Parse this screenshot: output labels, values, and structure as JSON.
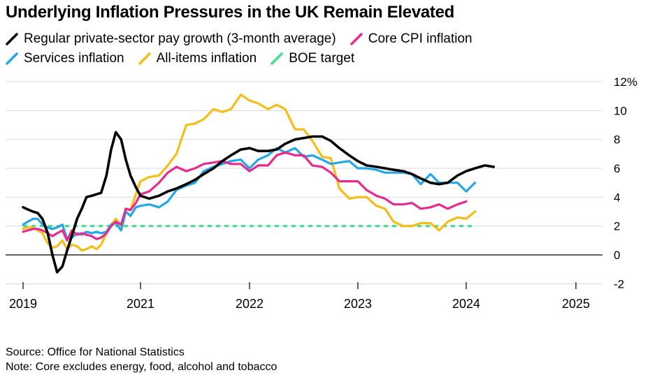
{
  "chart_data": {
    "type": "line",
    "title": "Underlying Inflation Pressures in the UK Remain Elevated",
    "xlabel": "",
    "ylabel": "",
    "ylim": [
      -2,
      12
    ],
    "xlim": [
      2019.0,
      2025.25
    ],
    "y_ticks": [
      "-2",
      "0",
      "2",
      "4",
      "6",
      "8",
      "10",
      "12%"
    ],
    "y_tick_values": [
      -2,
      0,
      2,
      4,
      6,
      8,
      10,
      12
    ],
    "x_ticks": [
      "2019",
      "2021",
      "2022",
      "2023",
      "2024",
      "2025"
    ],
    "grid": "horizontal",
    "legend_position": "top",
    "series": [
      {
        "name": "Regular private-sector pay growth (3-month average)",
        "color": "#000000",
        "points": [
          [
            2019.0,
            3.3
          ],
          [
            2019.08,
            3.15
          ],
          [
            2019.17,
            3.0
          ],
          [
            2019.25,
            2.9
          ],
          [
            2019.33,
            2.5
          ],
          [
            2019.42,
            1.5
          ],
          [
            2019.5,
            0.0
          ],
          [
            2019.58,
            -1.2
          ],
          [
            2019.67,
            -0.8
          ],
          [
            2019.75,
            0.3
          ],
          [
            2019.83,
            1.3
          ],
          [
            2019.92,
            2.5
          ],
          [
            2020.0,
            3.2
          ],
          [
            2020.08,
            4.0
          ],
          [
            2020.17,
            4.1
          ],
          [
            2020.25,
            4.2
          ],
          [
            2020.33,
            4.3
          ],
          [
            2020.42,
            5.5
          ],
          [
            2020.5,
            7.3
          ],
          [
            2020.58,
            8.5
          ],
          [
            2020.67,
            8.0
          ],
          [
            2020.75,
            6.6
          ],
          [
            2020.83,
            5.5
          ],
          [
            2020.92,
            4.7
          ],
          [
            2021.0,
            4.1
          ],
          [
            2021.08,
            3.9
          ],
          [
            2021.17,
            4.1
          ],
          [
            2021.25,
            4.4
          ],
          [
            2021.33,
            4.6
          ],
          [
            2021.42,
            4.9
          ],
          [
            2021.5,
            5.2
          ],
          [
            2021.58,
            5.6
          ],
          [
            2021.67,
            6.0
          ],
          [
            2021.75,
            6.5
          ],
          [
            2021.83,
            6.9
          ],
          [
            2021.92,
            7.3
          ],
          [
            2022.0,
            7.4
          ],
          [
            2022.08,
            7.2
          ],
          [
            2022.17,
            7.2
          ],
          [
            2022.25,
            7.3
          ],
          [
            2022.33,
            7.7
          ],
          [
            2022.42,
            8.0
          ],
          [
            2022.5,
            8.1
          ],
          [
            2022.58,
            8.2
          ],
          [
            2022.67,
            8.2
          ],
          [
            2022.75,
            7.9
          ],
          [
            2022.83,
            7.4
          ],
          [
            2022.92,
            6.9
          ],
          [
            2023.0,
            6.5
          ],
          [
            2023.08,
            6.2
          ],
          [
            2023.17,
            6.1
          ],
          [
            2023.25,
            6.0
          ],
          [
            2023.33,
            5.9
          ],
          [
            2023.42,
            5.8
          ],
          [
            2023.5,
            5.6
          ],
          [
            2023.58,
            5.3
          ],
          [
            2023.67,
            5.0
          ],
          [
            2023.75,
            4.9
          ],
          [
            2023.83,
            5.0
          ],
          [
            2023.92,
            5.5
          ],
          [
            2024.0,
            5.8
          ],
          [
            2024.08,
            6.0
          ],
          [
            2024.17,
            6.2
          ],
          [
            2024.25,
            6.1
          ]
        ]
      },
      {
        "name": "Core CPI inflation",
        "color": "#e8298d",
        "points": [
          [
            2019.0,
            1.6
          ],
          [
            2019.08,
            1.7
          ],
          [
            2019.17,
            1.8
          ],
          [
            2019.25,
            1.8
          ],
          [
            2019.33,
            1.7
          ],
          [
            2019.42,
            1.5
          ],
          [
            2019.5,
            1.3
          ],
          [
            2019.58,
            1.5
          ],
          [
            2019.67,
            1.7
          ],
          [
            2019.75,
            1.0
          ],
          [
            2019.83,
            1.7
          ],
          [
            2019.92,
            1.4
          ],
          [
            2020.0,
            1.5
          ],
          [
            2020.08,
            1.4
          ],
          [
            2020.17,
            1.3
          ],
          [
            2020.25,
            1.1
          ],
          [
            2020.33,
            1.2
          ],
          [
            2020.42,
            1.5
          ],
          [
            2020.5,
            2.0
          ],
          [
            2020.58,
            2.3
          ],
          [
            2020.67,
            2.1
          ],
          [
            2020.75,
            3.2
          ],
          [
            2020.83,
            3.1
          ],
          [
            2020.92,
            3.6
          ],
          [
            2021.0,
            4.2
          ],
          [
            2021.08,
            4.4
          ],
          [
            2021.17,
            5.0
          ],
          [
            2021.25,
            5.7
          ],
          [
            2021.33,
            6.1
          ],
          [
            2021.42,
            5.8
          ],
          [
            2021.5,
            6.0
          ],
          [
            2021.58,
            6.3
          ],
          [
            2021.67,
            6.4
          ],
          [
            2021.75,
            6.5
          ],
          [
            2021.83,
            6.3
          ],
          [
            2021.92,
            6.3
          ],
          [
            2022.0,
            5.8
          ],
          [
            2022.08,
            6.2
          ],
          [
            2022.17,
            6.2
          ],
          [
            2022.25,
            6.9
          ],
          [
            2022.33,
            7.1
          ],
          [
            2022.42,
            6.9
          ],
          [
            2022.5,
            6.9
          ],
          [
            2022.58,
            6.2
          ],
          [
            2022.67,
            6.1
          ],
          [
            2022.75,
            5.7
          ],
          [
            2022.83,
            5.1
          ],
          [
            2022.92,
            5.1
          ],
          [
            2023.0,
            5.1
          ],
          [
            2023.08,
            4.5
          ],
          [
            2023.17,
            4.1
          ],
          [
            2023.25,
            3.9
          ],
          [
            2023.33,
            3.5
          ],
          [
            2023.42,
            3.5
          ],
          [
            2023.5,
            3.6
          ],
          [
            2023.58,
            3.2
          ],
          [
            2023.67,
            3.3
          ],
          [
            2023.75,
            3.5
          ],
          [
            2023.83,
            3.2
          ],
          [
            2023.92,
            3.5
          ],
          [
            2024.0,
            3.7
          ]
        ]
      },
      {
        "name": "Services inflation",
        "color": "#22a7e8",
        "points": [
          [
            2019.0,
            2.1
          ],
          [
            2019.08,
            2.3
          ],
          [
            2019.17,
            2.5
          ],
          [
            2019.25,
            2.5
          ],
          [
            2019.33,
            2.1
          ],
          [
            2019.42,
            1.9
          ],
          [
            2019.5,
            1.8
          ],
          [
            2019.58,
            1.9
          ],
          [
            2019.67,
            2.1
          ],
          [
            2019.75,
            1.1
          ],
          [
            2019.83,
            1.2
          ],
          [
            2019.92,
            1.5
          ],
          [
            2020.0,
            1.4
          ],
          [
            2020.08,
            1.6
          ],
          [
            2020.17,
            1.5
          ],
          [
            2020.25,
            1.6
          ],
          [
            2020.33,
            1.5
          ],
          [
            2020.42,
            1.6
          ],
          [
            2020.5,
            2.1
          ],
          [
            2020.58,
            2.2
          ],
          [
            2020.67,
            1.7
          ],
          [
            2020.75,
            3.0
          ],
          [
            2020.83,
            2.7
          ],
          [
            2020.92,
            3.3
          ],
          [
            2021.0,
            3.4
          ],
          [
            2021.08,
            3.5
          ],
          [
            2021.17,
            3.3
          ],
          [
            2021.25,
            3.7
          ],
          [
            2021.33,
            4.5
          ],
          [
            2021.42,
            4.8
          ],
          [
            2021.5,
            5.0
          ],
          [
            2021.58,
            5.8
          ],
          [
            2021.67,
            6.1
          ],
          [
            2021.75,
            6.3
          ],
          [
            2021.83,
            6.5
          ],
          [
            2021.92,
            6.6
          ],
          [
            2022.0,
            6.0
          ],
          [
            2022.08,
            6.6
          ],
          [
            2022.17,
            6.9
          ],
          [
            2022.25,
            7.4
          ],
          [
            2022.33,
            7.1
          ],
          [
            2022.42,
            7.4
          ],
          [
            2022.5,
            6.8
          ],
          [
            2022.58,
            6.9
          ],
          [
            2022.67,
            6.6
          ],
          [
            2022.75,
            6.3
          ],
          [
            2022.83,
            6.4
          ],
          [
            2022.92,
            6.5
          ],
          [
            2023.0,
            6.0
          ],
          [
            2023.08,
            6.0
          ],
          [
            2023.17,
            5.9
          ],
          [
            2023.25,
            5.7
          ],
          [
            2023.33,
            5.7
          ],
          [
            2023.42,
            5.7
          ],
          [
            2023.5,
            5.6
          ],
          [
            2023.58,
            4.9
          ],
          [
            2023.67,
            5.6
          ],
          [
            2023.75,
            5.0
          ],
          [
            2023.83,
            5.0
          ],
          [
            2023.92,
            5.0
          ],
          [
            2024.0,
            4.4
          ],
          [
            2024.08,
            5.0
          ]
        ]
      },
      {
        "name": "All-items inflation",
        "color": "#f7bd16",
        "points": [
          [
            2019.0,
            1.8
          ],
          [
            2019.08,
            1.9
          ],
          [
            2019.17,
            1.9
          ],
          [
            2019.25,
            1.7
          ],
          [
            2019.33,
            1.5
          ],
          [
            2019.42,
            0.8
          ],
          [
            2019.5,
            0.5
          ],
          [
            2019.58,
            0.6
          ],
          [
            2019.67,
            1.0
          ],
          [
            2019.75,
            0.4
          ],
          [
            2019.83,
            0.7
          ],
          [
            2019.92,
            0.6
          ],
          [
            2020.0,
            0.3
          ],
          [
            2020.08,
            0.4
          ],
          [
            2020.17,
            0.6
          ],
          [
            2020.25,
            0.4
          ],
          [
            2020.33,
            0.7
          ],
          [
            2020.42,
            1.5
          ],
          [
            2020.5,
            2.1
          ],
          [
            2020.58,
            2.5
          ],
          [
            2020.67,
            2.0
          ],
          [
            2020.75,
            3.2
          ],
          [
            2020.83,
            3.1
          ],
          [
            2020.92,
            4.2
          ],
          [
            2021.0,
            5.1
          ],
          [
            2021.08,
            5.4
          ],
          [
            2021.17,
            5.5
          ],
          [
            2021.25,
            6.2
          ],
          [
            2021.33,
            7.0
          ],
          [
            2021.42,
            9.0
          ],
          [
            2021.5,
            9.1
          ],
          [
            2021.58,
            9.4
          ],
          [
            2021.67,
            10.1
          ],
          [
            2021.75,
            9.9
          ],
          [
            2021.83,
            10.1
          ],
          [
            2021.92,
            11.1
          ],
          [
            2022.0,
            10.7
          ],
          [
            2022.08,
            10.5
          ],
          [
            2022.17,
            10.1
          ],
          [
            2022.25,
            10.4
          ],
          [
            2022.33,
            10.1
          ],
          [
            2022.42,
            8.7
          ],
          [
            2022.5,
            8.7
          ],
          [
            2022.58,
            7.9
          ],
          [
            2022.67,
            6.8
          ],
          [
            2022.75,
            6.7
          ],
          [
            2022.83,
            4.6
          ],
          [
            2022.92,
            3.9
          ],
          [
            2023.0,
            4.0
          ],
          [
            2023.08,
            4.0
          ],
          [
            2023.17,
            3.4
          ],
          [
            2023.25,
            3.2
          ],
          [
            2023.33,
            2.3
          ],
          [
            2023.42,
            2.0
          ],
          [
            2023.5,
            2.0
          ],
          [
            2023.58,
            2.2
          ],
          [
            2023.67,
            2.2
          ],
          [
            2023.75,
            1.7
          ],
          [
            2023.83,
            2.3
          ],
          [
            2023.92,
            2.6
          ],
          [
            2024.0,
            2.5
          ],
          [
            2024.08,
            3.0
          ]
        ]
      },
      {
        "name": "BOE target",
        "color": "#3ee08f",
        "dashed": true,
        "points": [
          [
            2019.0,
            2.0
          ],
          [
            2024.08,
            2.0
          ]
        ]
      }
    ]
  },
  "footer": {
    "source": "Source: Office for National Statistics",
    "note": "Note: Core excludes energy, food, alcohol and tobacco"
  }
}
